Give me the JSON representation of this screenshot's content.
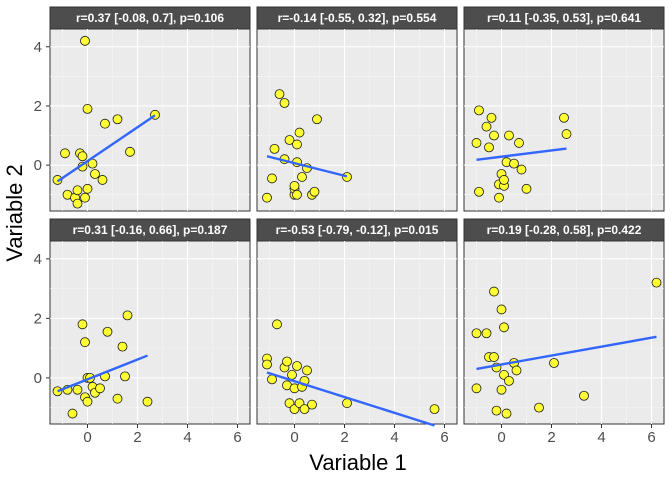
{
  "chart_data": {
    "type": "scatter",
    "xlabel": "Variable 1",
    "ylabel": "Variable 2",
    "xlim": [
      -1.5,
      6.5
    ],
    "ylim": [
      -1.55,
      4.6
    ],
    "x_ticks": [
      0,
      2,
      4,
      6
    ],
    "y_ticks": [
      0,
      2,
      4
    ],
    "grid": true,
    "layout": "2x3 facets",
    "colors": {
      "point_fill": "#ffff33",
      "point_stroke": "#1a1a1a",
      "line": "#3366ff",
      "panel_bg": "#ebebeb",
      "strip_bg": "#4d4d4d",
      "grid_major": "#ffffff"
    },
    "panels": [
      {
        "strip": "r=0.37 [-0.08, 0.7], p=0.106",
        "points": [
          [
            -1.2,
            -0.5
          ],
          [
            -0.9,
            0.4
          ],
          [
            -0.8,
            -1.0
          ],
          [
            -0.5,
            -1.1
          ],
          [
            -0.4,
            -0.85
          ],
          [
            -0.4,
            -1.3
          ],
          [
            -0.3,
            0.4
          ],
          [
            -0.2,
            0.3
          ],
          [
            -0.2,
            -0.05
          ],
          [
            -0.1,
            -1.1
          ],
          [
            -0.1,
            4.2
          ],
          [
            0.0,
            1.9
          ],
          [
            0.0,
            -0.8
          ],
          [
            0.2,
            0.05
          ],
          [
            0.3,
            -0.3
          ],
          [
            0.6,
            -0.5
          ],
          [
            0.7,
            1.4
          ],
          [
            1.2,
            1.55
          ],
          [
            1.7,
            0.45
          ],
          [
            2.7,
            1.7
          ]
        ],
        "fit": [
          [
            -1.2,
            -0.55
          ],
          [
            2.7,
            1.68
          ]
        ]
      },
      {
        "strip": "r=-0.14 [-0.55, 0.32], p=0.554",
        "points": [
          [
            -1.1,
            -1.1
          ],
          [
            -0.9,
            -0.45
          ],
          [
            -0.8,
            0.55
          ],
          [
            -0.6,
            2.4
          ],
          [
            -0.4,
            2.1
          ],
          [
            -0.4,
            0.2
          ],
          [
            -0.2,
            0.85
          ],
          [
            0.0,
            -1.0
          ],
          [
            0.0,
            -0.8
          ],
          [
            0.0,
            -0.7
          ],
          [
            0.1,
            0.1
          ],
          [
            0.1,
            -1.0
          ],
          [
            0.1,
            0.7
          ],
          [
            0.2,
            1.1
          ],
          [
            0.3,
            -0.4
          ],
          [
            0.5,
            -0.1
          ],
          [
            0.7,
            -1.0
          ],
          [
            0.8,
            -0.9
          ],
          [
            0.9,
            1.55
          ],
          [
            2.1,
            -0.4
          ]
        ],
        "fit": [
          [
            -1.1,
            0.3
          ],
          [
            2.1,
            -0.38
          ]
        ]
      },
      {
        "strip": "r=0.11 [-0.35, 0.53], p=0.641",
        "points": [
          [
            -1.0,
            0.75
          ],
          [
            -0.9,
            1.85
          ],
          [
            -0.9,
            -0.9
          ],
          [
            -0.6,
            1.3
          ],
          [
            -0.5,
            0.6
          ],
          [
            -0.4,
            1.6
          ],
          [
            -0.3,
            1.0
          ],
          [
            -0.1,
            -1.1
          ],
          [
            -0.1,
            -0.65
          ],
          [
            0.0,
            -0.3
          ],
          [
            0.1,
            -0.7
          ],
          [
            0.1,
            -0.5
          ],
          [
            0.2,
            0.1
          ],
          [
            0.3,
            1.0
          ],
          [
            0.5,
            0.05
          ],
          [
            0.7,
            0.75
          ],
          [
            0.8,
            -0.15
          ],
          [
            1.0,
            -0.8
          ],
          [
            2.5,
            1.6
          ],
          [
            2.6,
            1.05
          ]
        ],
        "fit": [
          [
            -1.0,
            0.18
          ],
          [
            2.6,
            0.56
          ]
        ]
      },
      {
        "strip": "r=0.31 [-0.16, 0.66], p=0.187",
        "points": [
          [
            -1.2,
            -0.45
          ],
          [
            -0.8,
            -0.4
          ],
          [
            -0.6,
            -1.2
          ],
          [
            -0.4,
            -0.4
          ],
          [
            -0.2,
            1.8
          ],
          [
            -0.1,
            1.2
          ],
          [
            -0.1,
            -0.65
          ],
          [
            0.0,
            0.0
          ],
          [
            0.0,
            -0.8
          ],
          [
            0.1,
            0.0
          ],
          [
            0.2,
            -0.3
          ],
          [
            0.3,
            -0.5
          ],
          [
            0.5,
            -0.35
          ],
          [
            0.7,
            0.05
          ],
          [
            0.8,
            1.55
          ],
          [
            1.2,
            -0.7
          ],
          [
            1.4,
            1.05
          ],
          [
            1.5,
            0.05
          ],
          [
            1.6,
            2.1
          ],
          [
            2.4,
            -0.8
          ]
        ],
        "fit": [
          [
            -1.2,
            -0.45
          ],
          [
            2.4,
            0.75
          ]
        ]
      },
      {
        "strip": "r=-0.53 [-0.79, -0.12], p=0.015",
        "points": [
          [
            -1.1,
            0.65
          ],
          [
            -1.1,
            0.45
          ],
          [
            -0.9,
            -0.05
          ],
          [
            -0.7,
            1.8
          ],
          [
            -0.4,
            0.35
          ],
          [
            -0.3,
            0.55
          ],
          [
            -0.3,
            -0.25
          ],
          [
            -0.2,
            -0.85
          ],
          [
            -0.1,
            0.1
          ],
          [
            0.0,
            -1.05
          ],
          [
            0.0,
            -0.35
          ],
          [
            0.1,
            0.4
          ],
          [
            0.2,
            -0.85
          ],
          [
            0.3,
            -0.3
          ],
          [
            0.4,
            -1.05
          ],
          [
            0.4,
            -0.1
          ],
          [
            0.5,
            0.25
          ],
          [
            0.7,
            -0.9
          ],
          [
            2.1,
            -0.85
          ],
          [
            5.6,
            -1.05
          ]
        ],
        "fit": [
          [
            -1.1,
            0.18
          ],
          [
            5.6,
            -1.6
          ]
        ]
      },
      {
        "strip": "r=0.19 [-0.28, 0.58], p=0.422",
        "points": [
          [
            -1.0,
            -0.35
          ],
          [
            -1.0,
            1.5
          ],
          [
            -0.6,
            1.5
          ],
          [
            -0.5,
            0.7
          ],
          [
            -0.3,
            0.7
          ],
          [
            -0.3,
            2.9
          ],
          [
            -0.2,
            -1.1
          ],
          [
            -0.2,
            0.35
          ],
          [
            0.0,
            -0.4
          ],
          [
            0.0,
            2.3
          ],
          [
            0.1,
            1.7
          ],
          [
            0.1,
            0.1
          ],
          [
            0.2,
            -1.2
          ],
          [
            0.3,
            -0.1
          ],
          [
            0.5,
            0.5
          ],
          [
            0.6,
            0.25
          ],
          [
            1.5,
            -1.0
          ],
          [
            2.1,
            0.5
          ],
          [
            3.3,
            -0.6
          ],
          [
            6.2,
            3.2
          ]
        ],
        "fit": [
          [
            -1.0,
            0.3
          ],
          [
            6.2,
            1.38
          ]
        ]
      }
    ]
  }
}
